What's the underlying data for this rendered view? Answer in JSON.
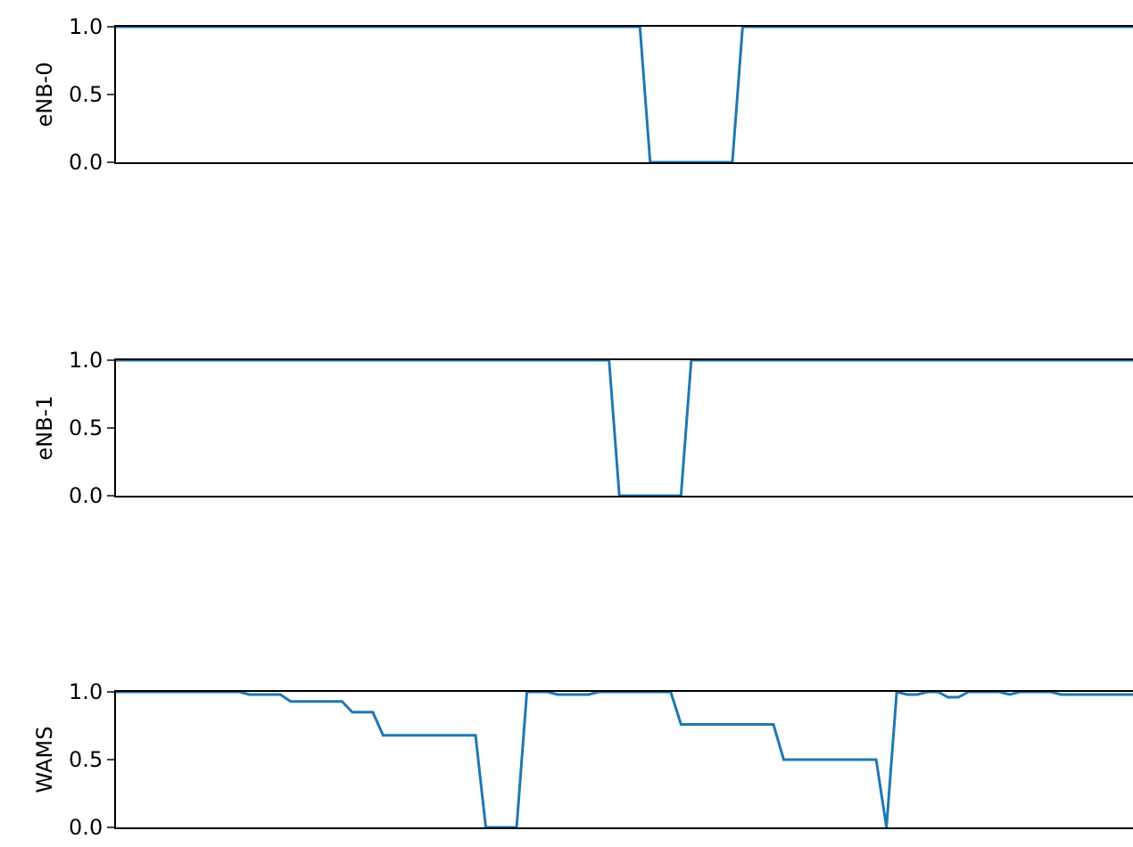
{
  "chart_data": [
    {
      "type": "line",
      "ylabel": "eNB-0",
      "tick_labels": "y",
      "ylim": [
        0,
        1
      ],
      "yticks": [
        {
          "value": 0,
          "label": "0.0"
        },
        {
          "value": 0.5,
          "label": "0.5"
        },
        {
          "value": 1,
          "label": "1.0"
        }
      ],
      "categories": [
        null,
        null,
        null,
        null,
        null,
        null,
        null,
        null,
        null,
        null,
        null,
        null,
        null,
        null,
        null,
        null,
        null,
        null,
        null,
        null,
        null,
        null,
        null,
        null,
        null,
        null,
        null,
        null,
        null,
        null,
        null,
        null,
        null,
        null,
        null,
        null,
        null,
        null,
        null,
        null,
        null,
        null,
        null,
        null,
        null,
        null,
        null,
        null,
        null,
        null,
        null,
        null,
        null,
        null,
        null,
        null,
        null,
        null,
        null,
        null,
        null,
        null,
        null,
        null,
        null,
        null,
        null,
        null,
        null,
        null,
        null,
        null,
        null,
        null,
        null,
        null,
        null,
        null,
        null,
        null,
        null,
        null,
        null,
        null,
        null,
        null,
        null,
        null,
        null,
        null,
        null,
        null,
        null,
        null,
        null,
        null,
        null,
        null,
        null,
        null
      ],
      "series": [
        {
          "color": "#1f77b4",
          "values": [
            1,
            1,
            1,
            1,
            1,
            1,
            1,
            1,
            1,
            1,
            1,
            1,
            1,
            1,
            1,
            1,
            1,
            1,
            1,
            1,
            1,
            1,
            1,
            1,
            1,
            1,
            1,
            1,
            1,
            1,
            1,
            1,
            1,
            1,
            1,
            1,
            1,
            1,
            1,
            1,
            1,
            1,
            1,
            1,
            1,
            1,
            1,
            1,
            1,
            1,
            1,
            1,
            0,
            0,
            0,
            0,
            0,
            0,
            0,
            0,
            0,
            1,
            1,
            1,
            1,
            1,
            1,
            1,
            1,
            1,
            1,
            1,
            1,
            1,
            1,
            1,
            1,
            1,
            1,
            1,
            1,
            1,
            1,
            1,
            1,
            1,
            1,
            1,
            1,
            1,
            1,
            1,
            1,
            1,
            1,
            1,
            1,
            1,
            1,
            1
          ]
        }
      ]
    },
    {
      "type": "line",
      "ylabel": "eNB-1",
      "tick_labels": "y",
      "ylim": [
        0,
        1
      ],
      "yticks": [
        {
          "value": 0,
          "label": "0.0"
        },
        {
          "value": 0.5,
          "label": "0.5"
        },
        {
          "value": 1,
          "label": "1.0"
        }
      ],
      "categories": [
        null,
        null,
        null,
        null,
        null,
        null,
        null,
        null,
        null,
        null,
        null,
        null,
        null,
        null,
        null,
        null,
        null,
        null,
        null,
        null,
        null,
        null,
        null,
        null,
        null,
        null,
        null,
        null,
        null,
        null,
        null,
        null,
        null,
        null,
        null,
        null,
        null,
        null,
        null,
        null,
        null,
        null,
        null,
        null,
        null,
        null,
        null,
        null,
        null,
        null,
        null,
        null,
        null,
        null,
        null,
        null,
        null,
        null,
        null,
        null,
        null,
        null,
        null,
        null,
        null,
        null,
        null,
        null,
        null,
        null,
        null,
        null,
        null,
        null,
        null,
        null,
        null,
        null,
        null,
        null,
        null,
        null,
        null,
        null,
        null,
        null,
        null,
        null,
        null,
        null,
        null,
        null,
        null,
        null,
        null,
        null,
        null,
        null,
        null,
        null
      ],
      "series": [
        {
          "color": "#1f77b4",
          "values": [
            1,
            1,
            1,
            1,
            1,
            1,
            1,
            1,
            1,
            1,
            1,
            1,
            1,
            1,
            1,
            1,
            1,
            1,
            1,
            1,
            1,
            1,
            1,
            1,
            1,
            1,
            1,
            1,
            1,
            1,
            1,
            1,
            1,
            1,
            1,
            1,
            1,
            1,
            1,
            1,
            1,
            1,
            1,
            1,
            1,
            1,
            1,
            1,
            1,
            0,
            0,
            0,
            0,
            0,
            0,
            0,
            1,
            1,
            1,
            1,
            1,
            1,
            1,
            1,
            1,
            1,
            1,
            1,
            1,
            1,
            1,
            1,
            1,
            1,
            1,
            1,
            1,
            1,
            1,
            1,
            1,
            1,
            1,
            1,
            1,
            1,
            1,
            1,
            1,
            1,
            1,
            1,
            1,
            1,
            1,
            1,
            1,
            1,
            1,
            1
          ]
        }
      ]
    },
    {
      "type": "line",
      "ylabel": "WAMS",
      "tick_labels": "y",
      "ylim": [
        0,
        1
      ],
      "yticks": [
        {
          "value": 0,
          "label": "0.0"
        },
        {
          "value": 0.5,
          "label": "0.5"
        },
        {
          "value": 1,
          "label": "1.0"
        }
      ],
      "categories": [
        null,
        null,
        null,
        null,
        null,
        null,
        null,
        null,
        null,
        null,
        null,
        null,
        null,
        null,
        null,
        null,
        null,
        null,
        null,
        null,
        null,
        null,
        null,
        null,
        null,
        null,
        null,
        null,
        null,
        null,
        null,
        null,
        null,
        null,
        null,
        null,
        null,
        null,
        null,
        null,
        null,
        null,
        null,
        null,
        null,
        null,
        null,
        null,
        null,
        null,
        null,
        null,
        null,
        null,
        null,
        null,
        null,
        null,
        null,
        null,
        null,
        null,
        null,
        null,
        null,
        null,
        null,
        null,
        null,
        null,
        null,
        null,
        null,
        null,
        null,
        null,
        null,
        null,
        null,
        null,
        null,
        null,
        null,
        null,
        null,
        null,
        null,
        null,
        null,
        null,
        null,
        null,
        null,
        null,
        null,
        null,
        null,
        null,
        null,
        null
      ],
      "series": [
        {
          "color": "#1f77b4",
          "values": [
            1,
            1,
            1,
            1,
            1,
            1,
            1,
            1,
            1,
            1,
            1,
            1,
            1,
            0.98,
            0.98,
            0.98,
            0.98,
            0.93,
            0.93,
            0.93,
            0.93,
            0.93,
            0.93,
            0.85,
            0.85,
            0.85,
            0.68,
            0.68,
            0.68,
            0.68,
            0.68,
            0.68,
            0.68,
            0.68,
            0.68,
            0.68,
            0,
            0,
            0,
            0,
            1,
            1,
            1,
            0.98,
            0.98,
            0.98,
            0.98,
            1,
            1,
            1,
            1,
            1,
            1,
            1,
            1,
            0.76,
            0.76,
            0.76,
            0.76,
            0.76,
            0.76,
            0.76,
            0.76,
            0.76,
            0.76,
            0.5,
            0.5,
            0.5,
            0.5,
            0.5,
            0.5,
            0.5,
            0.5,
            0.5,
            0.5,
            0,
            1,
            0.98,
            0.98,
            1,
            1,
            0.96,
            0.96,
            1,
            1,
            1,
            1,
            0.98,
            1,
            1,
            1,
            1,
            0.98,
            0.98,
            0.98,
            0.98,
            0.98,
            0.98,
            0.98,
            0.98
          ]
        }
      ]
    }
  ]
}
